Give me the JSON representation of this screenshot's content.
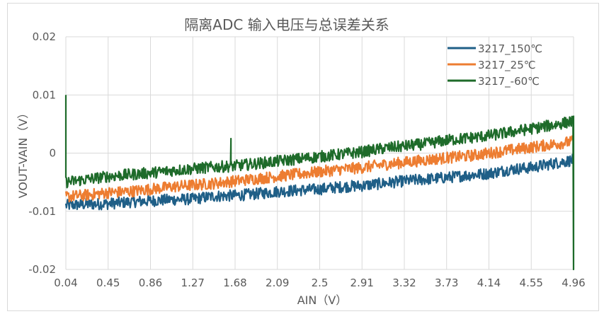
{
  "chart_data": {
    "type": "line",
    "title": "隔离ADC 输入电压与总误差关系",
    "xlabel": "AIN（V）",
    "ylabel": "VOUT-VAIN（V）",
    "xlim": [
      0.04,
      4.96
    ],
    "ylim": [
      -0.02,
      0.02
    ],
    "x_ticks": [
      "0.04",
      "0.45",
      "0.86",
      "1.27",
      "1.68",
      "2.09",
      "2.5",
      "2.91",
      "3.32",
      "3.73",
      "4.14",
      "4.55",
      "4.96"
    ],
    "y_ticks": [
      "0.02",
      "0.01",
      "0",
      "-0.01",
      "-0.02"
    ],
    "grid": true,
    "legend_position": "top-right",
    "noise_band": 0.001,
    "x": [
      0.04,
      0.245,
      0.45,
      0.655,
      0.86,
      1.065,
      1.27,
      1.475,
      1.68,
      1.885,
      2.09,
      2.295,
      2.5,
      2.705,
      2.91,
      3.115,
      3.32,
      3.525,
      3.73,
      3.935,
      4.14,
      4.345,
      4.55,
      4.755,
      4.96
    ],
    "series": [
      {
        "name": "3217_150℃",
        "color": "#1f5f87",
        "values": [
          -0.009,
          -0.0088,
          -0.0087,
          -0.0084,
          -0.0082,
          -0.008,
          -0.0079,
          -0.0074,
          -0.0073,
          -0.007,
          -0.0066,
          -0.0064,
          -0.0062,
          -0.0058,
          -0.0056,
          -0.0052,
          -0.0048,
          -0.0045,
          -0.0042,
          -0.0038,
          -0.0035,
          -0.0028,
          -0.0025,
          -0.0018,
          -0.0012
        ]
      },
      {
        "name": "3217_25℃",
        "color": "#ed7d31",
        "values": [
          -0.0075,
          -0.0072,
          -0.0068,
          -0.0066,
          -0.0062,
          -0.0058,
          -0.0055,
          -0.0052,
          -0.0048,
          -0.0044,
          -0.004,
          -0.0036,
          -0.0032,
          -0.0028,
          -0.0025,
          -0.002,
          -0.0016,
          -0.0012,
          -0.0008,
          -0.0005,
          0.0,
          0.0005,
          0.001,
          0.0015,
          0.002
        ]
      },
      {
        "name": "3217_-60℃",
        "color": "#1e6b2a",
        "values": [
          -0.005,
          -0.0045,
          -0.004,
          -0.0037,
          -0.0034,
          -0.003,
          -0.0027,
          -0.0024,
          -0.0022,
          -0.0018,
          -0.0014,
          -0.001,
          -0.0006,
          -0.0002,
          0.0002,
          0.0008,
          0.0012,
          0.0016,
          0.0022,
          0.0026,
          0.003,
          0.0036,
          0.0042,
          0.0048,
          0.0055
        ]
      }
    ],
    "annotations_spikes": [
      {
        "series": "3217_-60℃",
        "x": 0.04,
        "y": 0.01
      },
      {
        "series": "3217_-60℃",
        "x": 1.64,
        "y": 0.0025
      },
      {
        "series": "3217_-60℃",
        "x": 4.96,
        "y": -0.02
      }
    ]
  }
}
